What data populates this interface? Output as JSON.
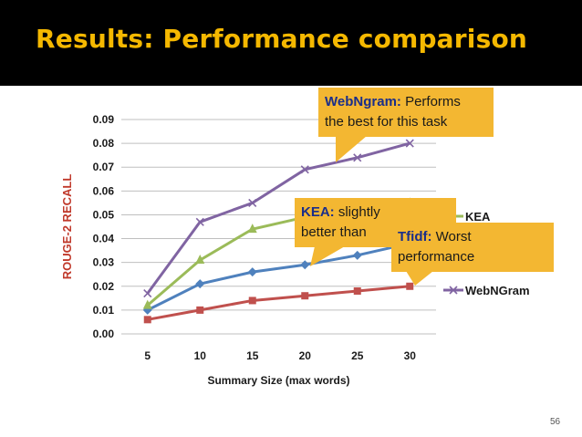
{
  "slide": {
    "title": "Results: Performance comparison",
    "page_number": "56",
    "title_color": "#f5b800",
    "callout_color": "#f3b732"
  },
  "callouts": {
    "webngram": {
      "name": "WebNgram:",
      "text1": " Performs",
      "text2": "the best for this task"
    },
    "kea": {
      "name": "KEA:",
      "text1": " slightly",
      "text2": "better than"
    },
    "tfidf": {
      "name": "Tfidf:",
      "text1": " Worst",
      "text2": "performance"
    }
  },
  "chart_data": {
    "type": "line",
    "x": [
      5,
      10,
      15,
      20,
      25,
      30
    ],
    "x_tick_labels": [
      "5",
      "10",
      "15",
      "20",
      "25",
      "30"
    ],
    "xlabel": "Summary Size (max words)",
    "ylabel": "ROUGE-2 RECALL",
    "ylim": [
      0,
      0.09
    ],
    "y_tick_labels": [
      "0.00",
      "0.01",
      "0.02",
      "0.03",
      "0.04",
      "0.05",
      "0.06",
      "0.07",
      "0.08",
      "0.09"
    ],
    "grid": "horizontal",
    "legend_position": "right",
    "series": [
      {
        "name": "",
        "color": "#4f81bd",
        "marker": "diamond",
        "values": [
          0.01,
          0.021,
          0.026,
          0.029,
          0.033,
          0.038
        ]
      },
      {
        "name": "",
        "color": "#c0504d",
        "marker": "square",
        "values": [
          0.006,
          0.01,
          0.014,
          0.016,
          0.018,
          0.02
        ]
      },
      {
        "name": "KEA",
        "color": "#9bbb59",
        "marker": "triangle",
        "values": [
          0.012,
          0.031,
          0.044,
          0.049,
          0.052,
          0.055
        ]
      },
      {
        "name": "WebNGram",
        "color": "#8064a2",
        "marker": "x",
        "values": [
          0.017,
          0.047,
          0.055,
          0.069,
          0.074,
          0.08
        ]
      }
    ]
  }
}
